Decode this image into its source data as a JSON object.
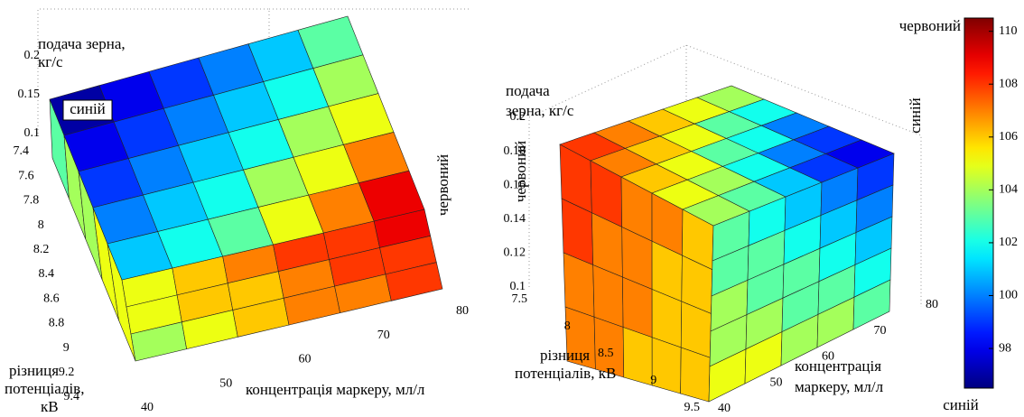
{
  "chart_data": [
    {
      "type": "surface3d",
      "colormap": "jet",
      "clim": [
        96.5,
        110.5
      ],
      "z_label": [
        "подача зерна,",
        "кг/с"
      ],
      "y_label": [
        "різниця",
        "потенціалів,",
        "кВ"
      ],
      "x_label": [
        "концентрація маркеру, мл/л"
      ],
      "annotations": [
        "синій",
        "червоний"
      ],
      "zlim": [
        0.1,
        0.2
      ],
      "zticks": [
        0.1,
        0.15,
        0.2
      ],
      "ylim": [
        7.4,
        9.4
      ],
      "yticks": [
        7.4,
        7.6,
        7.8,
        8,
        8.2,
        8.4,
        8.6,
        8.8,
        9,
        9.2,
        9.4
      ],
      "xlim": [
        40,
        80
      ],
      "xticks": [
        40,
        50,
        60,
        70,
        80
      ],
      "faces": [
        {
          "values": [
            [
              103,
              104,
              104,
              105,
              105
            ]
          ]
        },
        {
          "values": [
            [
              105,
              106,
              107,
              108,
              108,
              109
            ],
            [
              105,
              106,
              106,
              107,
              108,
              108
            ],
            [
              104,
              105,
              106,
              107,
              107,
              108
            ]
          ]
        },
        {
          "values": [
            [
              97,
              98,
              99,
              100,
              101,
              103
            ],
            [
              98,
              99,
              100,
              101,
              102,
              104
            ],
            [
              99,
              100,
              101,
              102,
              104,
              105
            ],
            [
              100,
              101,
              102,
              104,
              105,
              107
            ],
            [
              101,
              102,
              103,
              105,
              107,
              109
            ]
          ]
        }
      ]
    },
    {
      "type": "surface3d",
      "colormap": "jet",
      "clim": [
        96.5,
        110.5
      ],
      "z_label": [
        "подача",
        "зерна, кг/с"
      ],
      "y_label": [
        "різниця",
        "потенціалів, кВ"
      ],
      "x_label": [
        "концентрація",
        "маркеру, мл/л"
      ],
      "annotations": [
        "червоний",
        "синій"
      ],
      "zlim": [
        0.1,
        0.2
      ],
      "zticks": [
        0.1,
        0.12,
        0.14,
        0.16,
        0.18,
        0.2
      ],
      "ylim": [
        7.5,
        9.5
      ],
      "yticks": [
        7.5,
        8,
        8.5,
        9,
        9.5
      ],
      "xlim": [
        40,
        80
      ],
      "xticks": [
        40,
        50,
        60,
        70,
        80
      ],
      "faces": [
        {
          "values": [
            [
              108,
              108,
              107,
              107,
              106
            ],
            [
              108,
              107,
              107,
              106,
              106
            ],
            [
              107,
              107,
              107,
              106,
              106
            ],
            [
              107,
              107,
              106,
              106,
              106
            ]
          ]
        },
        {
          "values": [
            [
              103,
              102,
              101,
              100,
              99
            ],
            [
              103,
              103,
              102,
              101,
              100
            ],
            [
              104,
              103,
              103,
              102,
              101
            ],
            [
              104,
              104,
              103,
              103,
              102
            ],
            [
              105,
              105,
              104,
              104,
              103
            ]
          ]
        },
        {
          "values": [
            [
              108,
              107,
              106,
              105,
              104
            ],
            [
              107,
              106,
              105,
              103,
              102
            ],
            [
              106,
              105,
              103,
              102,
              100
            ],
            [
              105,
              104,
              102,
              100,
              99
            ],
            [
              104,
              103,
              101,
              99,
              98
            ]
          ]
        }
      ]
    },
    {
      "type": "colorbar",
      "colormap": "jet",
      "clim": [
        96.5,
        110.5
      ],
      "ticks": [
        98,
        100,
        102,
        104,
        106,
        108,
        110
      ],
      "top_label": "червоний",
      "bottom_label": "синій"
    }
  ]
}
